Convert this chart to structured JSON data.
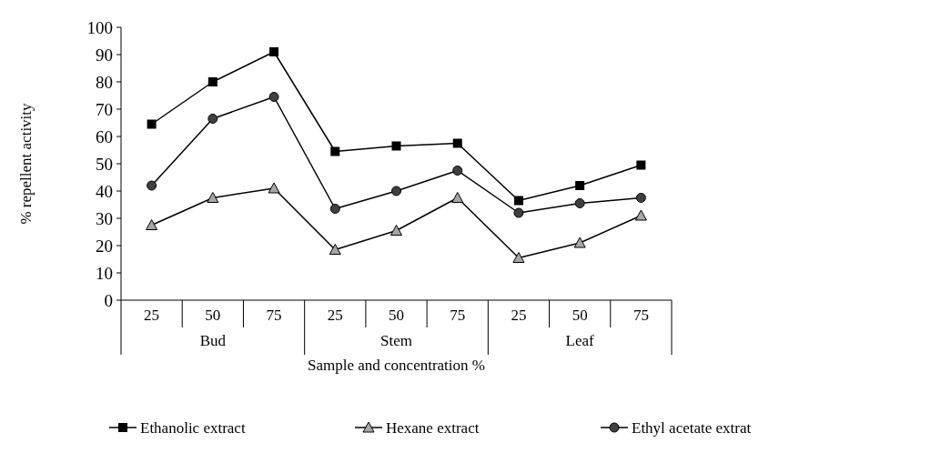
{
  "chart_data": {
    "type": "line",
    "xlabel": "Sample and concentration %",
    "ylabel": "% repellent activity",
    "categories": [
      "25",
      "50",
      "75",
      "25",
      "50",
      "75",
      "25",
      "50",
      "75"
    ],
    "annotations": [
      "Bud",
      "Stem",
      "Leaf"
    ],
    "ylim": [
      0,
      100
    ],
    "yticks": [
      0,
      10,
      20,
      30,
      40,
      50,
      60,
      70,
      80,
      90,
      100
    ],
    "grid": false,
    "legend": "bottom",
    "series": [
      {
        "name": "Ethanolic extract",
        "color": "#000000",
        "marker": "square",
        "values": [
          64.5,
          80,
          91,
          54.5,
          56.5,
          57.5,
          36.5,
          42,
          49.5
        ]
      },
      {
        "name": "Hexane extract",
        "color": "#000000",
        "marker": "triangle",
        "values": [
          27.5,
          37.5,
          41,
          18.5,
          25.5,
          37.5,
          15.5,
          21,
          31
        ]
      },
      {
        "name": "Ethyl acetate extrat",
        "color": "#000000",
        "marker": "circle",
        "values": [
          42,
          66.5,
          74.5,
          33.5,
          40,
          47.5,
          32,
          35.5,
          37.5
        ]
      }
    ]
  }
}
